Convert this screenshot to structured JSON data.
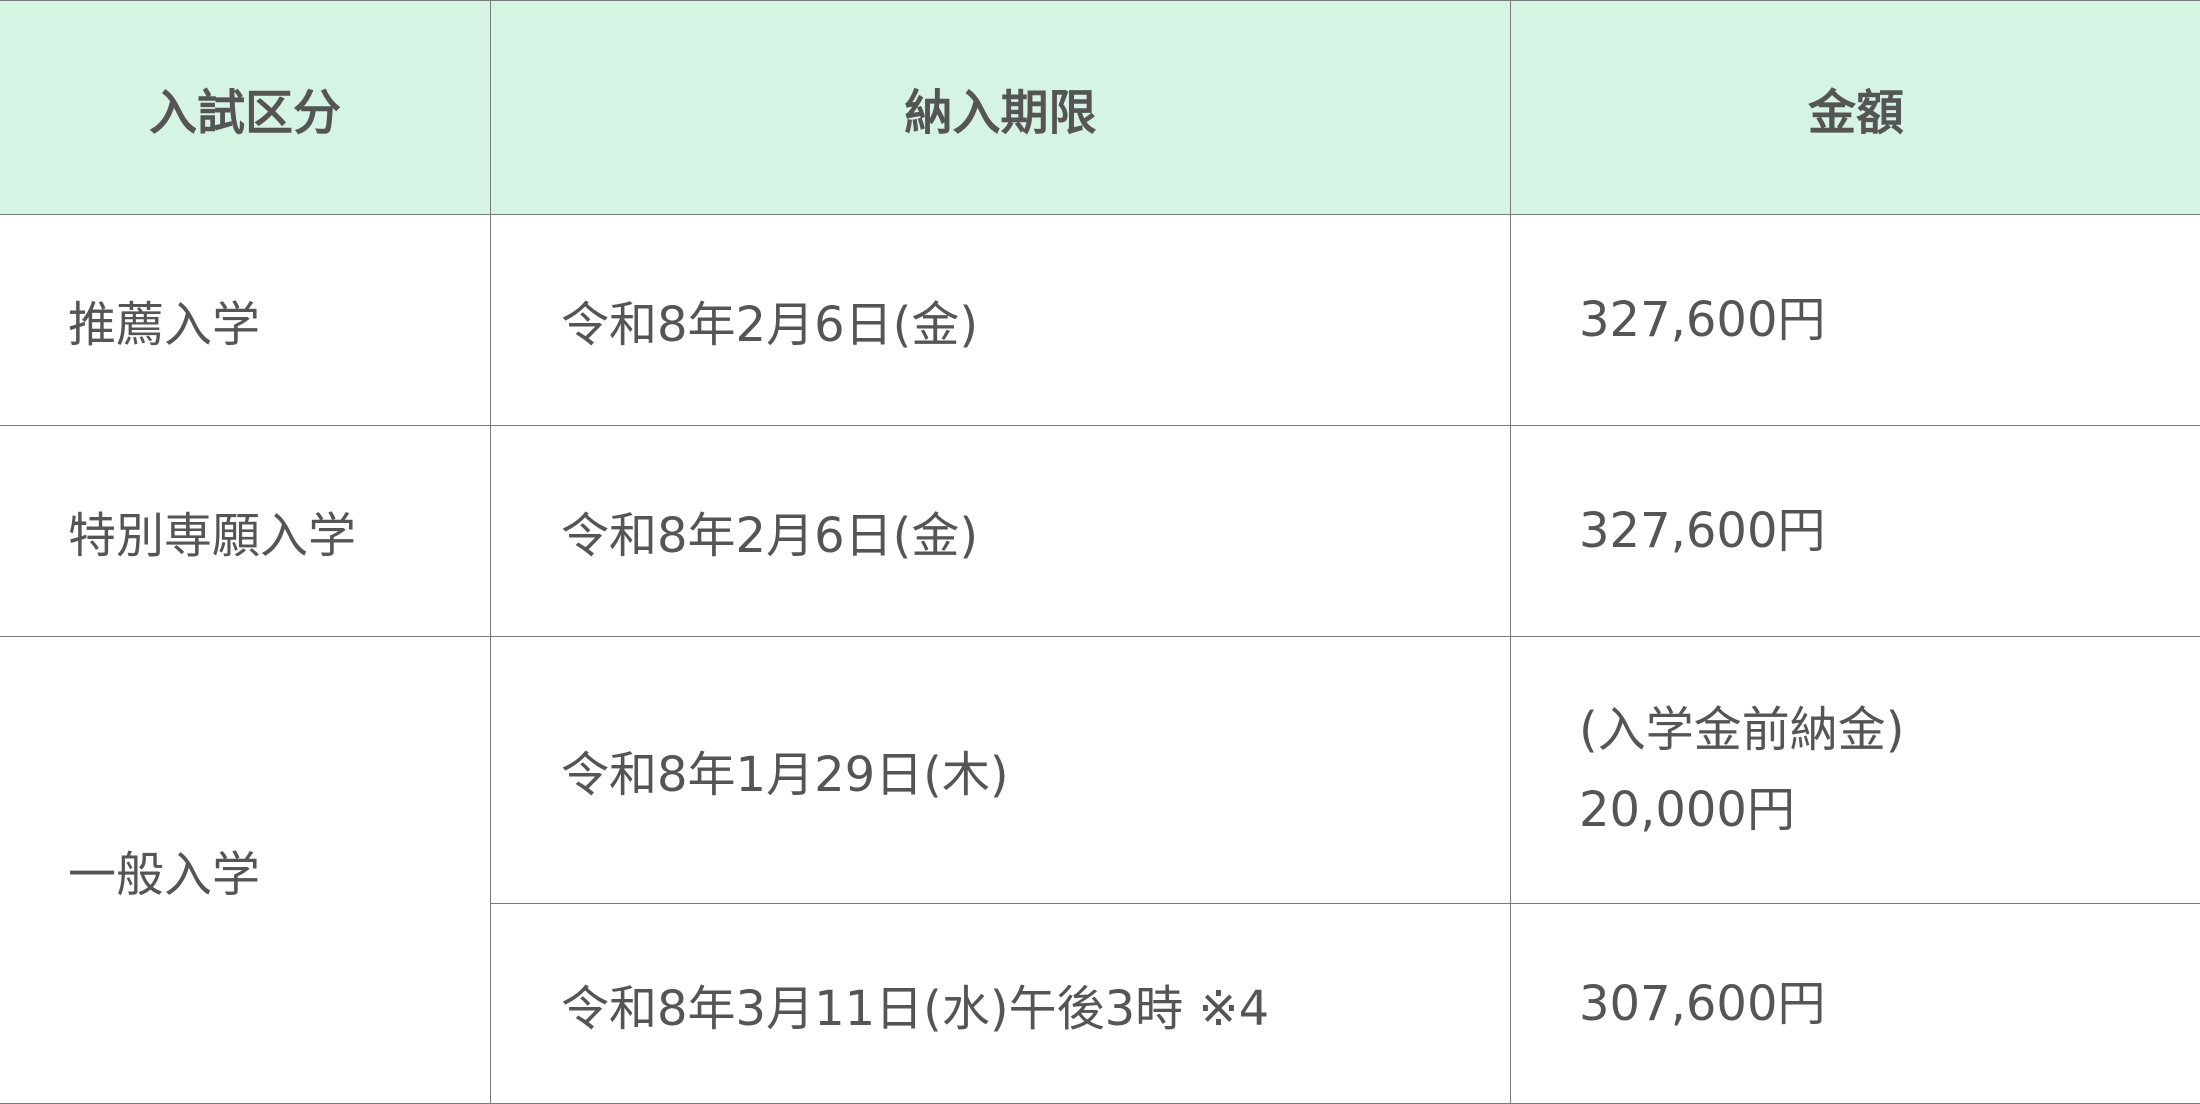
{
  "header": {
    "category": "入試区分",
    "deadline": "納入期限",
    "amount": "金額"
  },
  "rows": [
    {
      "category": "推薦入学",
      "deadline": "令和8年2月6日(金)",
      "amount_lines": [
        "327,600円"
      ]
    },
    {
      "category": "特別専願入学",
      "deadline": "令和8年2月6日(金)",
      "amount_lines": [
        "327,600円"
      ]
    },
    {
      "category": "一般入学",
      "deadline": "令和8年1月29日(木)",
      "amount_lines": [
        "(入学金前納金)",
        "20,000円"
      ]
    },
    {
      "deadline": "令和8年3月11日(水)午後3時 ※4",
      "amount_lines": [
        "307,600円"
      ]
    }
  ],
  "colors": {
    "header_bg": "#d6f4e4",
    "text": "#555555",
    "border": "#7a7a7a"
  }
}
